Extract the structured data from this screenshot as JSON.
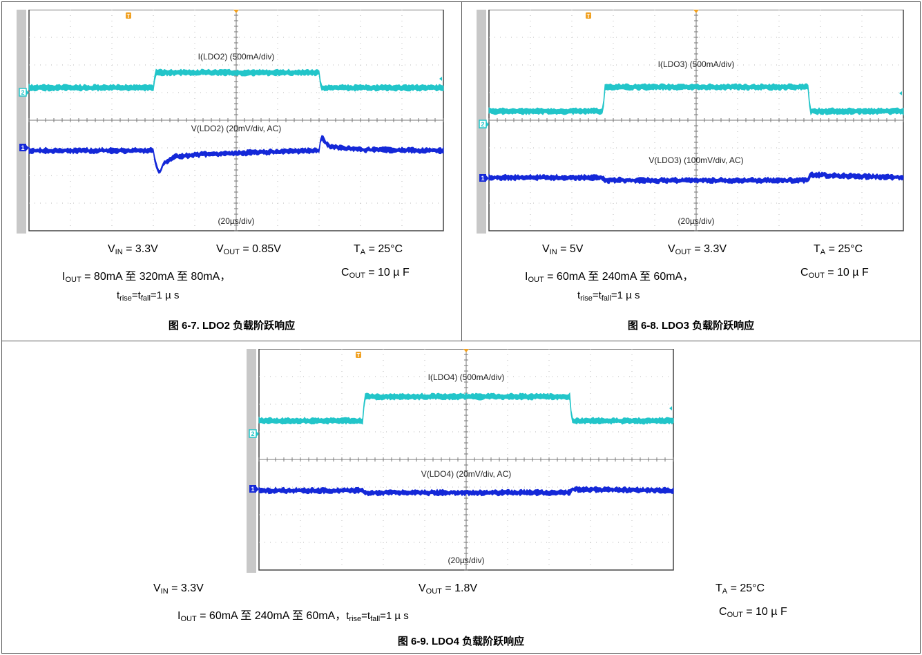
{
  "chart_data": [
    {
      "type": "line",
      "id": "fig67",
      "title": "图 6-7. LDO2 负载阶跃响应",
      "timebase_label": "(20µs/div)",
      "x_unit": "µs",
      "xlim": [
        -100,
        100
      ],
      "series": [
        {
          "name": "I(LDO2) (500mA/div)",
          "channel": "2",
          "color": "#22c5c9",
          "x": [
            -100,
            -40,
            -39,
            40,
            41,
            100
          ],
          "values": [
            80,
            80,
            320,
            320,
            80,
            80
          ],
          "unit": "mA"
        },
        {
          "name": "V(LDO2) (20mV/div, AC)",
          "channel": "1",
          "color": "#1428d8",
          "x": [
            -100,
            -40,
            -39,
            -37,
            -35,
            -30,
            -20,
            0,
            20,
            40,
            41,
            43,
            45,
            50,
            60,
            100
          ],
          "values": [
            0,
            0,
            -12,
            -22,
            -12,
            -6,
            -4,
            -2.5,
            -1,
            0,
            14,
            8,
            4,
            3,
            1,
            0
          ],
          "unit": "mV"
        }
      ]
    },
    {
      "type": "line",
      "id": "fig68",
      "title": "图 6-8. LDO3 负载阶跃响应",
      "timebase_label": "(20µs/div)",
      "x_unit": "µs",
      "xlim": [
        -100,
        100
      ],
      "series": [
        {
          "name": "I(LDO3) (500mA/div)",
          "channel": "2",
          "color": "#22c5c9",
          "x": [
            -100,
            -45,
            -44,
            54,
            55,
            100
          ],
          "values": [
            60,
            60,
            240,
            240,
            60,
            60
          ],
          "unit": "mA"
        },
        {
          "name": "V(LDO3) (100mV/div, AC)",
          "channel": "1",
          "color": "#1428d8",
          "x": [
            -100,
            -45,
            -44,
            54,
            55,
            100
          ],
          "values": [
            0,
            0,
            -4,
            -4,
            4,
            0
          ],
          "unit": "mV"
        }
      ]
    },
    {
      "type": "line",
      "id": "fig69",
      "title": "图 6-9. LDO4 负载阶跃响应",
      "timebase_label": "(20µs/div)",
      "x_unit": "µs",
      "xlim": [
        -100,
        100
      ],
      "series": [
        {
          "name": "I(LDO4) (500mA/div)",
          "channel": "2",
          "color": "#22c5c9",
          "x": [
            -100,
            -50,
            -49,
            50,
            51,
            100
          ],
          "values": [
            60,
            60,
            240,
            240,
            60,
            60
          ],
          "unit": "mA"
        },
        {
          "name": "V(LDO4) (20mV/div, AC)",
          "channel": "1",
          "color": "#1428d8",
          "x": [
            -100,
            -50,
            -49,
            50,
            51,
            100
          ],
          "values": [
            0,
            0,
            -3,
            -3,
            2,
            0
          ],
          "unit": "mV"
        }
      ]
    }
  ],
  "conditions": {
    "fig67": {
      "vin_sym": "V",
      "vin_sub": "IN",
      "vin_val": " = 3.3V",
      "vout_sym": "V",
      "vout_sub": "OUT",
      "vout_val": " = 0.85V",
      "ta_sym": "T",
      "ta_sub": "A",
      "ta_val": " = 25°C",
      "iout_sym": "I",
      "iout_sub": "OUT",
      "iout_val": " = 80mA 至 320mA 至 80mA，",
      "cout_sym": "C",
      "cout_sub": "OUT",
      "cout_val": " = 10 µ F",
      "t_sym": "t",
      "trise_sub": "rise",
      "t_eq": "=t",
      "tfall_sub": "fall",
      "t_val": "=1 µ s"
    },
    "fig68": {
      "vin_sym": "V",
      "vin_sub": "IN",
      "vin_val": " = 5V",
      "vout_sym": "V",
      "vout_sub": "OUT",
      "vout_val": " = 3.3V",
      "ta_sym": "T",
      "ta_sub": "A",
      "ta_val": " = 25°C",
      "iout_sym": "I",
      "iout_sub": "OUT",
      "iout_val": " = 60mA 至 240mA 至 60mA，",
      "cout_sym": "C",
      "cout_sub": "OUT",
      "cout_val": " = 10 µ F",
      "t_sym": "t",
      "trise_sub": "rise",
      "t_eq": "=t",
      "tfall_sub": "fall",
      "t_val": "=1 µ s"
    },
    "fig69": {
      "vin_sym": "V",
      "vin_sub": "IN",
      "vin_val": " = 3.3V",
      "vout_sym": "V",
      "vout_sub": "OUT",
      "vout_val": " = 1.8V",
      "ta_sym": "T",
      "ta_sub": "A",
      "ta_val": " = 25°C",
      "iout_sym": "I",
      "iout_sub": "OUT",
      "iout_val": " = 60mA 至 240mA 至 60mA，",
      "t_sym": "t",
      "trise_sub": "rise",
      "t_eq": "=t",
      "tfall_sub": "fall",
      "t_val": "=1 µ s",
      "cout_sym": "C",
      "cout_sub": "OUT",
      "cout_val": " = 10 µ F"
    }
  },
  "markers": {
    "trigger": "T",
    "ch1": "1",
    "ch2": "2"
  },
  "colors": {
    "current_trace": "#22c5c9",
    "voltage_trace": "#1428d8",
    "trigger_marker": "#f0a020",
    "grid": "#b8b8b8",
    "screen_frame": "#444444"
  }
}
